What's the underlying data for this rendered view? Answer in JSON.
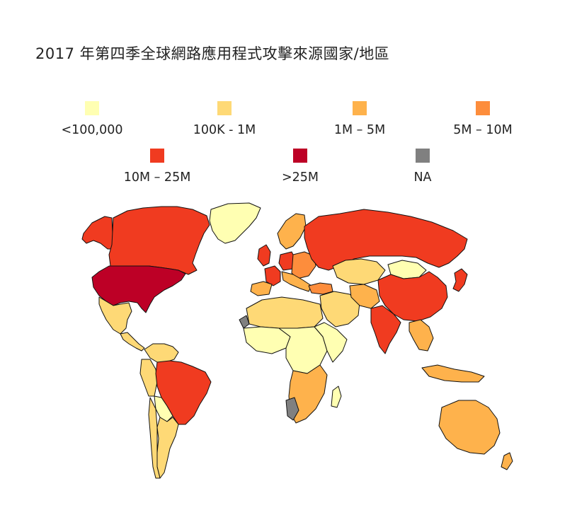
{
  "title": "2017 年第四季全球網路應用程式攻擊來源國家/地區",
  "legend": [
    {
      "label": "<100,000",
      "color": "#ffffb2"
    },
    {
      "label": "100K - 1M",
      "color": "#fed976"
    },
    {
      "label": "1M – 5M",
      "color": "#feb24c"
    },
    {
      "label": "5M – 10M",
      "color": "#fd8d3c"
    },
    {
      "label": "10M – 25M",
      "color": "#f03b20"
    },
    {
      "label": ">25M",
      "color": "#bd0026"
    },
    {
      "label": "NA",
      "color": "#808080"
    }
  ],
  "map": {
    "regions": [
      {
        "name": "United States",
        "category": ">25M"
      },
      {
        "name": "Canada",
        "category": "10M – 25M"
      },
      {
        "name": "Alaska",
        "category": "10M – 25M"
      },
      {
        "name": "Greenland",
        "category": "<100,000"
      },
      {
        "name": "Mexico",
        "category": "100K - 1M"
      },
      {
        "name": "Brazil",
        "category": "10M – 25M"
      },
      {
        "name": "Russia",
        "category": "10M – 25M"
      },
      {
        "name": "China",
        "category": "10M – 25M"
      },
      {
        "name": "India",
        "category": "10M – 25M"
      },
      {
        "name": "Japan",
        "category": "10M – 25M"
      },
      {
        "name": "Germany",
        "category": "10M – 25M"
      },
      {
        "name": "United Kingdom",
        "category": "10M – 25M"
      },
      {
        "name": "France",
        "category": "10M – 25M"
      },
      {
        "name": "Australia",
        "category": "1M – 5M"
      },
      {
        "name": "Western Sahara",
        "category": "NA"
      },
      {
        "name": "Namibia",
        "category": "NA"
      }
    ]
  }
}
